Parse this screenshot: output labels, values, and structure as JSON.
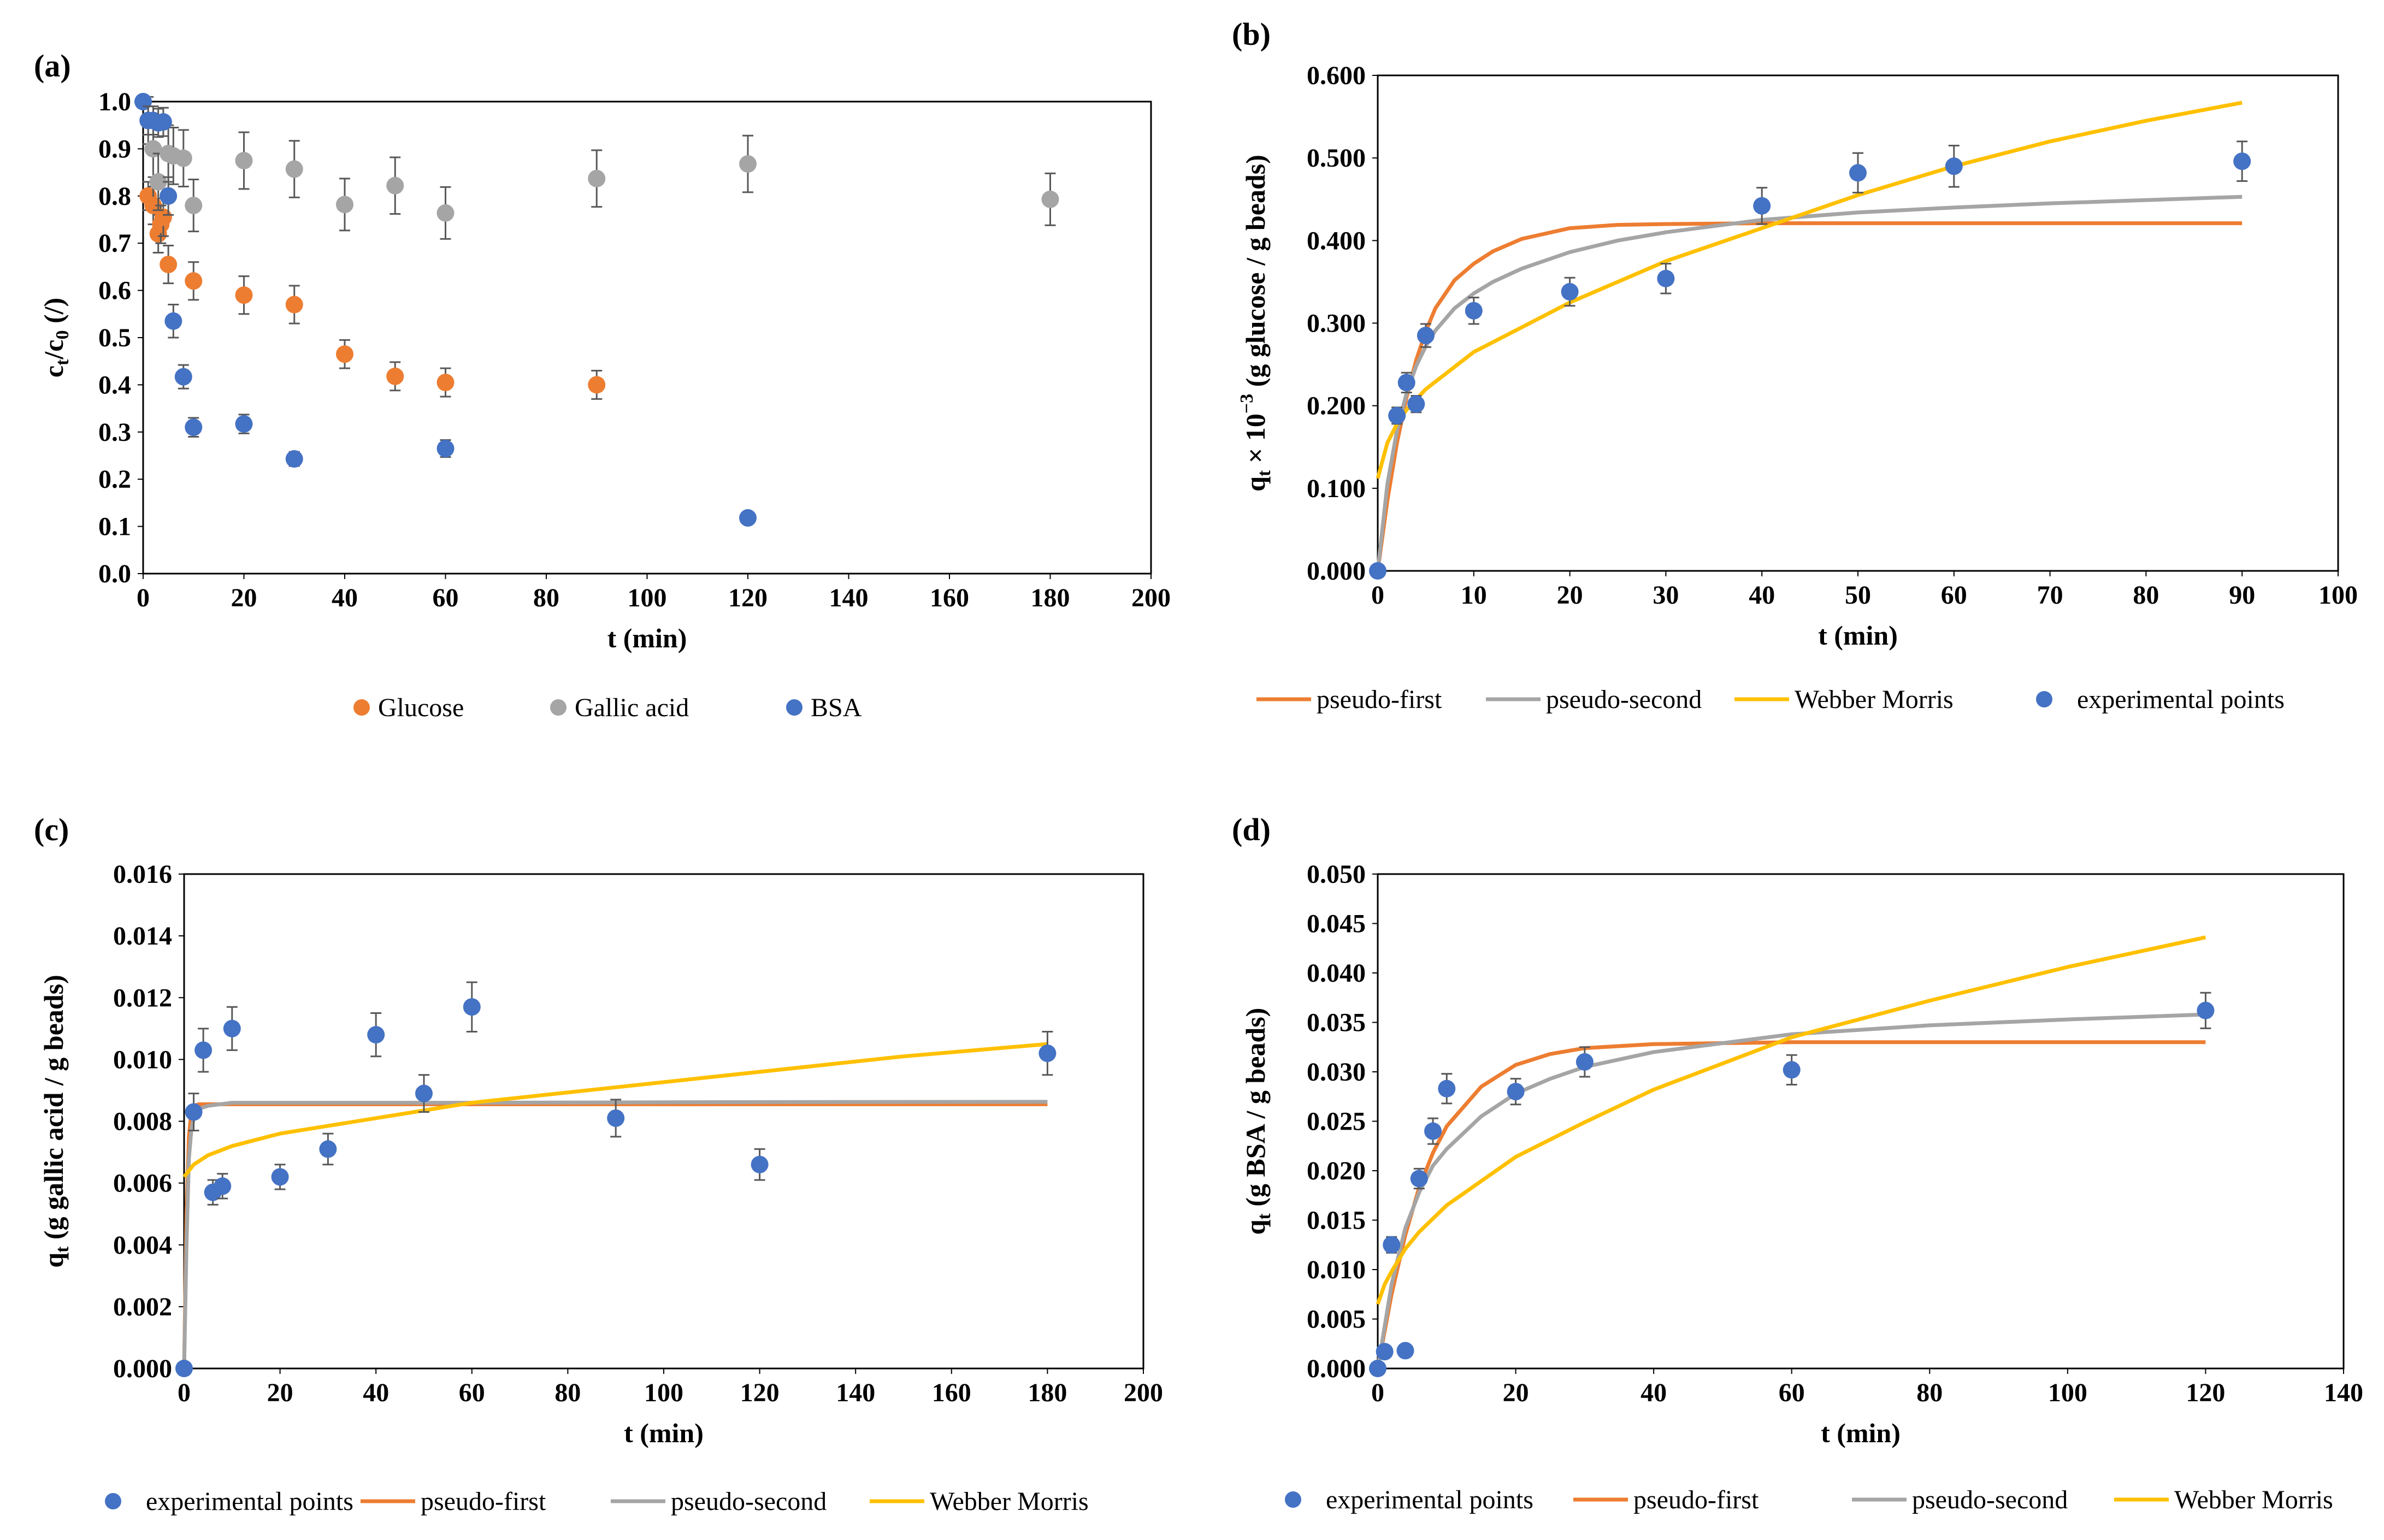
{
  "figure": {
    "colors": {
      "glucose": "#ED7D31",
      "gallic": "#A5A5A5",
      "bsa": "#4472C4",
      "pfo": "#ED7D31",
      "pso": "#A5A5A5",
      "wm": "#FFC000",
      "errbar": "#595959",
      "frame": "#000000"
    }
  },
  "chart_data": [
    {
      "id": "a",
      "type": "scatter",
      "label": "(a)",
      "xlabel": "t (min)",
      "ylabel_main": "c",
      "ylabel_sub1": "t",
      "ylabel_mid": "/c",
      "ylabel_sub2": "0",
      "ylabel_tail": " (/)",
      "xlim": [
        0,
        200
      ],
      "xticks": [
        0,
        20,
        40,
        60,
        80,
        100,
        120,
        140,
        160,
        180,
        200
      ],
      "xtick_labels": [
        "0",
        "20",
        "40",
        "60",
        "80",
        "100",
        "120",
        "140",
        "160",
        "180",
        "200"
      ],
      "ylim": [
        0,
        1.0
      ],
      "yticks": [
        0,
        0.1,
        0.2,
        0.3,
        0.4,
        0.5,
        0.6,
        0.7,
        0.8,
        0.9,
        1.0
      ],
      "ytick_labels": [
        "0.0",
        "0.1",
        "0.2",
        "0.3",
        "0.4",
        "0.5",
        "0.6",
        "0.7",
        "0.8",
        "0.9",
        "1.0"
      ],
      "legend_position": "bottom",
      "legend": [
        "Glucose",
        "Gallic acid",
        "BSA"
      ],
      "series": [
        {
          "name": "Glucose",
          "kind": "points",
          "color_key": "glucose",
          "x": [
            1,
            2,
            3,
            3.5,
            4,
            5,
            10,
            20,
            30,
            40,
            50,
            60,
            90
          ],
          "y": [
            0.8,
            0.78,
            0.72,
            0.74,
            0.755,
            0.655,
            0.62,
            0.59,
            0.57,
            0.465,
            0.418,
            0.405,
            0.4
          ],
          "err": [
            0.03,
            0.04,
            0.04,
            0.04,
            0.04,
            0.04,
            0.04,
            0.04,
            0.04,
            0.03,
            0.03,
            0.03,
            0.03
          ]
        },
        {
          "name": "Gallic acid",
          "kind": "points",
          "color_key": "gallic",
          "x": [
            1,
            2,
            3,
            5,
            6,
            8,
            10,
            20,
            30,
            40,
            50,
            60,
            90,
            120,
            180
          ],
          "y": [
            0.96,
            0.9,
            0.83,
            0.89,
            0.885,
            0.88,
            0.78,
            0.875,
            0.857,
            0.782,
            0.822,
            0.764,
            0.837,
            0.868,
            0.793
          ],
          "err": [
            0.05,
            0.06,
            0.06,
            0.06,
            0.06,
            0.06,
            0.055,
            0.06,
            0.06,
            0.055,
            0.06,
            0.055,
            0.06,
            0.06,
            0.055
          ]
        },
        {
          "name": "BSA",
          "kind": "points",
          "color_key": "bsa",
          "x": [
            0,
            1,
            2,
            3,
            4,
            5,
            6,
            8,
            10,
            20,
            30,
            60,
            120
          ],
          "y": [
            1.0,
            0.96,
            0.96,
            0.955,
            0.957,
            0.8,
            0.535,
            0.417,
            0.31,
            0.317,
            0.243,
            0.265,
            0.118
          ],
          "err": [
            0.0,
            0.03,
            0.03,
            0.03,
            0.03,
            0.04,
            0.035,
            0.025,
            0.02,
            0.02,
            0.015,
            0.018,
            0.0
          ]
        }
      ]
    },
    {
      "id": "b",
      "type": "scatter+line",
      "label": "(b)",
      "xlabel": "t (min)",
      "ylabel_main": "q",
      "ylabel_sub1": "t",
      "ylabel_mid": " × 10",
      "ylabel_sup": "−3",
      "ylabel_tail": " (g glucose / g beads)",
      "xlim": [
        0,
        100
      ],
      "xticks": [
        0,
        10,
        20,
        30,
        40,
        50,
        60,
        70,
        80,
        90,
        100
      ],
      "xtick_labels": [
        "0",
        "10",
        "20",
        "30",
        "40",
        "50",
        "60",
        "70",
        "80",
        "90",
        "100"
      ],
      "ylim": [
        0,
        0.6
      ],
      "yticks": [
        0,
        0.1,
        0.2,
        0.3,
        0.4,
        0.5,
        0.6
      ],
      "ytick_labels": [
        "0.000",
        "0.100",
        "0.200",
        "0.300",
        "0.400",
        "0.500",
        "0.600"
      ],
      "legend_position": "bottom",
      "legend": [
        "pseudo-first",
        "pseudo-second",
        "Webber Morris",
        "experimental points"
      ],
      "series": [
        {
          "name": "pseudo-first",
          "kind": "line",
          "color_key": "pfo",
          "x": [
            0,
            1,
            2,
            3,
            4,
            5,
            6,
            8,
            10,
            12,
            15,
            20,
            25,
            30,
            40,
            50,
            60,
            70,
            80,
            90
          ],
          "y": [
            0,
            0.085,
            0.155,
            0.21,
            0.255,
            0.29,
            0.318,
            0.352,
            0.372,
            0.387,
            0.402,
            0.415,
            0.419,
            0.42,
            0.421,
            0.421,
            0.421,
            0.421,
            0.421,
            0.421
          ]
        },
        {
          "name": "pseudo-second",
          "kind": "line",
          "color_key": "pso",
          "x": [
            0,
            1,
            2,
            3,
            4,
            5,
            6,
            8,
            10,
            12,
            15,
            20,
            25,
            30,
            40,
            50,
            60,
            70,
            80,
            90
          ],
          "y": [
            0,
            0.105,
            0.17,
            0.215,
            0.248,
            0.272,
            0.291,
            0.318,
            0.336,
            0.35,
            0.366,
            0.386,
            0.4,
            0.41,
            0.425,
            0.434,
            0.44,
            0.445,
            0.449,
            0.453
          ]
        },
        {
          "name": "Webber Morris",
          "kind": "line",
          "color_key": "wm",
          "x": [
            0,
            1,
            2,
            3,
            5,
            10,
            20,
            30,
            40,
            50,
            60,
            70,
            80,
            90
          ],
          "y": [
            0.112,
            0.155,
            0.178,
            0.195,
            0.22,
            0.265,
            0.325,
            0.375,
            0.415,
            0.455,
            0.49,
            0.52,
            0.545,
            0.567
          ]
        },
        {
          "name": "experimental points",
          "kind": "points",
          "color_key": "bsa",
          "x": [
            0,
            2,
            3,
            4,
            5,
            10,
            20,
            30,
            40,
            50,
            60,
            90
          ],
          "y": [
            0,
            0.188,
            0.228,
            0.202,
            0.285,
            0.315,
            0.338,
            0.354,
            0.442,
            0.482,
            0.49,
            0.496
          ],
          "err": [
            0,
            0.01,
            0.012,
            0.01,
            0.014,
            0.016,
            0.017,
            0.018,
            0.022,
            0.024,
            0.025,
            0.024
          ]
        }
      ]
    },
    {
      "id": "c",
      "type": "scatter+line",
      "label": "(c)",
      "xlabel": "t (min)",
      "ylabel_main": "q",
      "ylabel_sub1": "t",
      "ylabel_mid": "",
      "ylabel_tail": " (g gallic acid / g beads)",
      "xlim": [
        0,
        200
      ],
      "xticks": [
        0,
        20,
        40,
        60,
        80,
        100,
        120,
        140,
        160,
        180,
        200
      ],
      "xtick_labels": [
        "0",
        "20",
        "40",
        "60",
        "80",
        "100",
        "120",
        "140",
        "160",
        "180",
        "200"
      ],
      "ylim": [
        0,
        0.016
      ],
      "yticks": [
        0,
        0.002,
        0.004,
        0.006,
        0.008,
        0.01,
        0.012,
        0.014,
        0.016
      ],
      "ytick_labels": [
        "0.000",
        "0.002",
        "0.004",
        "0.006",
        "0.008",
        "0.010",
        "0.012",
        "0.014",
        "0.016"
      ],
      "legend_position": "bottom",
      "legend": [
        "experimental points",
        "pseudo-first",
        "pseudo-second",
        "Webber Morris"
      ],
      "series": [
        {
          "name": "pseudo-first",
          "kind": "line",
          "color_key": "pfo",
          "x": [
            0,
            0.5,
            1,
            1.5,
            2,
            3,
            5,
            10,
            20,
            60,
            120,
            180
          ],
          "y": [
            0,
            0.005,
            0.0075,
            0.0083,
            0.0085,
            0.00855,
            0.00855,
            0.00855,
            0.00855,
            0.00855,
            0.00855,
            0.00855
          ]
        },
        {
          "name": "pseudo-second",
          "kind": "line",
          "color_key": "pso",
          "x": [
            0,
            0.5,
            1,
            1.5,
            2,
            3,
            5,
            10,
            20,
            60,
            120,
            180
          ],
          "y": [
            0,
            0.004,
            0.0068,
            0.0077,
            0.0081,
            0.0084,
            0.0085,
            0.0086,
            0.0086,
            0.0086,
            0.00862,
            0.00863
          ]
        },
        {
          "name": "Webber Morris",
          "kind": "line",
          "color_key": "wm",
          "x": [
            0,
            1,
            2,
            5,
            10,
            20,
            40,
            60,
            90,
            120,
            150,
            180
          ],
          "y": [
            0.0062,
            0.0064,
            0.0066,
            0.0069,
            0.0072,
            0.0076,
            0.0081,
            0.0086,
            0.0091,
            0.0096,
            0.0101,
            0.0105
          ]
        },
        {
          "name": "experimental points",
          "kind": "points",
          "color_key": "bsa",
          "x": [
            0,
            2,
            4,
            6,
            8,
            10,
            20,
            30,
            40,
            50,
            60,
            90,
            120,
            180
          ],
          "y": [
            0,
            0.0083,
            0.0103,
            0.0057,
            0.0059,
            0.011,
            0.0062,
            0.0071,
            0.0108,
            0.0089,
            0.0117,
            0.0081,
            0.0066,
            0.0102
          ],
          "err": [
            0,
            0.0006,
            0.0007,
            0.0004,
            0.0004,
            0.0007,
            0.0004,
            0.0005,
            0.0007,
            0.0006,
            0.0008,
            0.0006,
            0.0005,
            0.0007
          ]
        }
      ]
    },
    {
      "id": "d",
      "type": "scatter+line",
      "label": "(d)",
      "xlabel": "t (min)",
      "ylabel_main": "q",
      "ylabel_sub1": "t",
      "ylabel_mid": "",
      "ylabel_tail": " (g BSA / g beads)",
      "xlim": [
        0,
        140
      ],
      "xticks": [
        0,
        20,
        40,
        60,
        80,
        100,
        120,
        140
      ],
      "xtick_labels": [
        "0",
        "20",
        "40",
        "60",
        "80",
        "100",
        "120",
        "140"
      ],
      "ylim": [
        0,
        0.05
      ],
      "yticks": [
        0,
        0.005,
        0.01,
        0.015,
        0.02,
        0.025,
        0.03,
        0.035,
        0.04,
        0.045,
        0.05
      ],
      "ytick_labels": [
        "0.000",
        "0.005",
        "0.010",
        "0.015",
        "0.020",
        "0.025",
        "0.030",
        "0.035",
        "0.040",
        "0.045",
        "0.050"
      ],
      "legend_position": "bottom",
      "legend": [
        "experimental points",
        "pseudo-first",
        "pseudo-second",
        "Webber Morris"
      ],
      "series": [
        {
          "name": "pseudo-first",
          "kind": "line",
          "color_key": "pfo",
          "x": [
            0,
            2,
            4,
            6,
            8,
            10,
            15,
            20,
            25,
            30,
            40,
            60,
            80,
            100,
            120
          ],
          "y": [
            0,
            0.0075,
            0.0135,
            0.0183,
            0.0218,
            0.0245,
            0.0285,
            0.0307,
            0.0318,
            0.0324,
            0.0328,
            0.033,
            0.033,
            0.033,
            0.033
          ]
        },
        {
          "name": "pseudo-second",
          "kind": "line",
          "color_key": "pso",
          "x": [
            0,
            2,
            4,
            6,
            8,
            10,
            15,
            20,
            25,
            30,
            40,
            60,
            80,
            100,
            120
          ],
          "y": [
            0,
            0.0085,
            0.0142,
            0.0178,
            0.0205,
            0.0222,
            0.0255,
            0.0278,
            0.0293,
            0.0305,
            0.032,
            0.0338,
            0.0347,
            0.0353,
            0.0358
          ]
        },
        {
          "name": "Webber Morris",
          "kind": "line",
          "color_key": "wm",
          "x": [
            0,
            1,
            2,
            4,
            6,
            10,
            20,
            30,
            40,
            60,
            80,
            100,
            120
          ],
          "y": [
            0.0065,
            0.0085,
            0.0098,
            0.0121,
            0.0138,
            0.0165,
            0.0214,
            0.0249,
            0.0282,
            0.0335,
            0.0372,
            0.0406,
            0.0436
          ]
        },
        {
          "name": "experimental points",
          "kind": "points",
          "color_key": "bsa",
          "x": [
            0,
            1,
            2,
            4,
            6,
            8,
            10,
            20,
            30,
            60,
            120
          ],
          "y": [
            0,
            0.0017,
            0.0125,
            0.0018,
            0.0192,
            0.024,
            0.0283,
            0.028,
            0.031,
            0.0302,
            0.0362
          ],
          "err": [
            0,
            0.0003,
            0.0008,
            0.0003,
            0.001,
            0.0013,
            0.0015,
            0.0013,
            0.0015,
            0.0015,
            0.0018
          ]
        }
      ]
    }
  ]
}
